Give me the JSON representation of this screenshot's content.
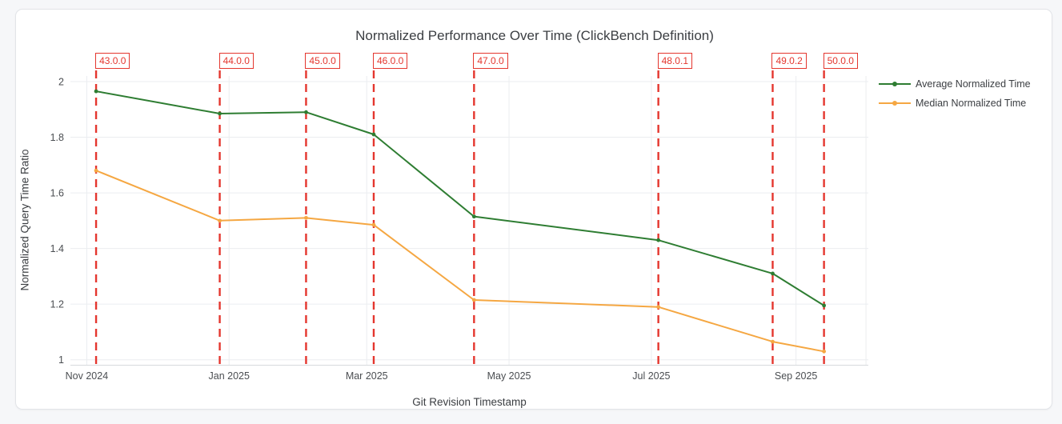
{
  "chart_data": {
    "type": "line",
    "title": "Normalized Performance Over Time (ClickBench Definition)",
    "xlabel": "Git Revision Timestamp",
    "ylabel": "Normalized Query Time Ratio",
    "x_ticks": [
      {
        "date": "2024-11-01",
        "label": "Nov 2024"
      },
      {
        "date": "2025-01-01",
        "label": "Jan 2025"
      },
      {
        "date": "2025-03-01",
        "label": "Mar 2025"
      },
      {
        "date": "2025-05-01",
        "label": "May 2025"
      },
      {
        "date": "2025-07-01",
        "label": "Jul 2025"
      },
      {
        "date": "2025-09-01",
        "label": "Sep 2025"
      },
      {
        "date": "2025-10-01",
        "label": ""
      }
    ],
    "y_ticks": [
      1,
      1.2,
      1.4,
      1.6,
      1.8,
      2
    ],
    "y_tick_labels": [
      "1",
      "1.2",
      "1.4",
      "1.6",
      "1.8",
      "2"
    ],
    "ylim": [
      0.982,
      2.02
    ],
    "xlim": [
      "2024-10-25",
      "2025-10-02"
    ],
    "grid": true,
    "legend_position": "top-right",
    "x": [
      "2024-11-05",
      "2024-12-28",
      "2025-02-03",
      "2025-03-04",
      "2025-04-16",
      "2025-07-04",
      "2025-08-22",
      "2025-09-13"
    ],
    "series": [
      {
        "name": "Average Normalized Time",
        "color": "#2e7d32",
        "values": [
          1.965,
          1.885,
          1.89,
          1.81,
          1.515,
          1.43,
          1.31,
          1.195
        ]
      },
      {
        "name": "Median Normalized Time",
        "color": "#f5a742",
        "values": [
          1.68,
          1.5,
          1.51,
          1.485,
          1.215,
          1.19,
          1.065,
          1.03
        ]
      }
    ],
    "release_markers": {
      "line_style": "dashed-vertical",
      "color": "#e4362e",
      "labels": [
        "43.0.0",
        "44.0.0",
        "45.0.0",
        "46.0.0",
        "47.0.0",
        "48.0.1",
        "49.0.2",
        "50.0.0"
      ],
      "dates": [
        "2024-11-05",
        "2024-12-28",
        "2025-02-03",
        "2025-03-04",
        "2025-04-16",
        "2025-07-04",
        "2025-08-22",
        "2025-09-13"
      ]
    },
    "colors": {
      "grid": "#ebedf0",
      "axis_line": "#d7dadd",
      "title_text": "#3b3e42",
      "tick_text": "#4b4e52"
    }
  }
}
